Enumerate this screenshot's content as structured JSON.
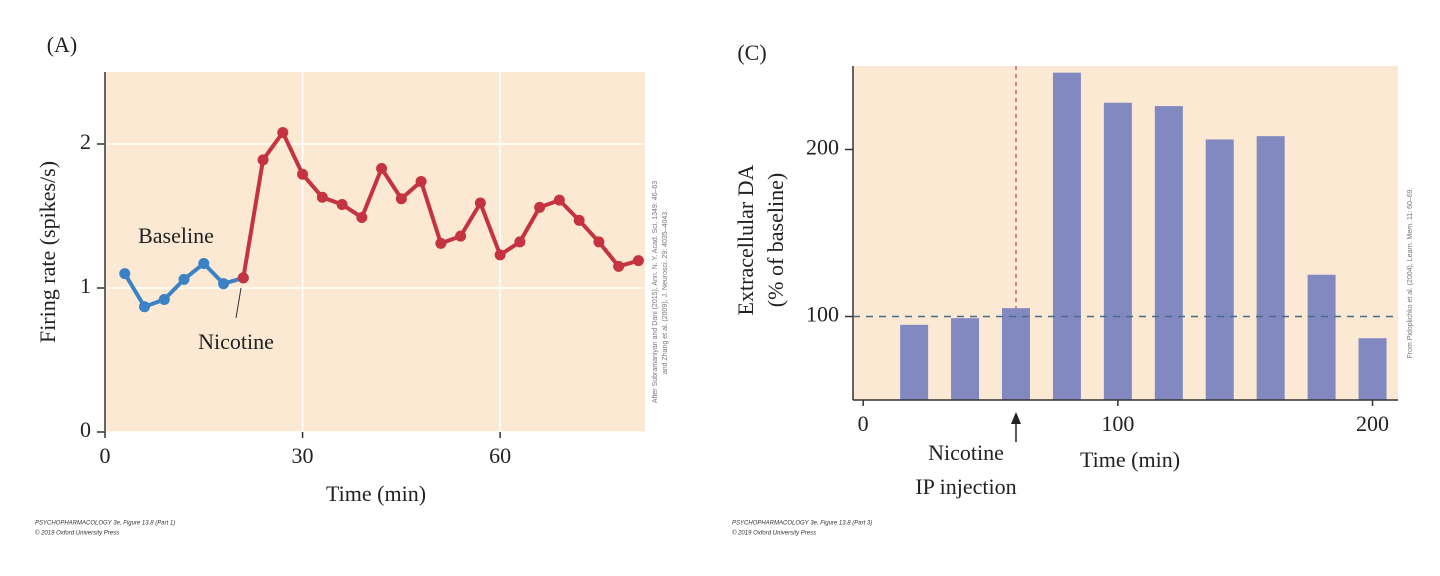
{
  "chart_data": [
    {
      "type": "line",
      "panel_label": "(A)",
      "x_label": "Time (min)",
      "y_label": "Firing rate (spikes/s)",
      "xlim": [
        0,
        82
      ],
      "ylim": [
        0,
        2.5
      ],
      "xticks": [
        0,
        30,
        60
      ],
      "yticks": [
        0,
        1,
        2
      ],
      "grid": true,
      "background": "#fbe9d3",
      "series": [
        {
          "name": "Baseline",
          "color": "#3b82c4",
          "x": [
            3,
            6,
            9,
            12,
            15,
            18,
            21
          ],
          "values": [
            1.1,
            0.87,
            0.92,
            1.06,
            1.17,
            1.03,
            1.07
          ]
        },
        {
          "name": "Nicotine",
          "color": "#c53341",
          "x": [
            21,
            24,
            27,
            30,
            33,
            36,
            39,
            42,
            45,
            48,
            51,
            54,
            57,
            60,
            63,
            66,
            69,
            72,
            75,
            78,
            81
          ],
          "values": [
            1.07,
            1.89,
            2.08,
            1.79,
            1.63,
            1.58,
            1.49,
            1.83,
            1.62,
            1.74,
            1.31,
            1.36,
            1.59,
            1.23,
            1.32,
            1.56,
            1.61,
            1.47,
            1.32,
            1.15,
            1.19
          ]
        }
      ],
      "credit": [
        "After Subramaniyan and Dani (2015), Ann. N. Y. Acad. Sci. 1349: 46–63",
        "and Zhang et al. (2009), J. Neurosci. 29: 4035–4043."
      ],
      "footer": [
        "PSYCHOPHARMACOLOGY 3e, Figure 13.8 (Part 1)",
        "© 2019 Oxford University Press"
      ]
    },
    {
      "type": "bar",
      "panel_label": "(C)",
      "x_label": "Time (min)",
      "y_label": [
        "Extracellular DA",
        "(% of baseline)"
      ],
      "xlim": [
        -4,
        210
      ],
      "ylim": [
        50,
        250
      ],
      "xticks": [
        0,
        100,
        200
      ],
      "yticks": [
        100,
        200
      ],
      "background": "#fbe9d3",
      "x": [
        20,
        40,
        60,
        80,
        100,
        120,
        140,
        160,
        180,
        200
      ],
      "values": [
        95,
        99,
        105,
        246,
        228,
        226,
        206,
        208,
        125,
        87
      ],
      "color": "#8289c0",
      "baseline": 100,
      "annotation": {
        "text": [
          "Nicotine",
          "IP injection"
        ],
        "x": 60
      },
      "credit": [
        "From Pidoplichko et al. (2004), Learn. Mem. 11: 60–69."
      ],
      "footer": [
        "PSYCHOPHARMACOLOGY 3e, Figure 13.8 (Part 3)",
        "© 2019 Oxford University Press"
      ]
    }
  ]
}
